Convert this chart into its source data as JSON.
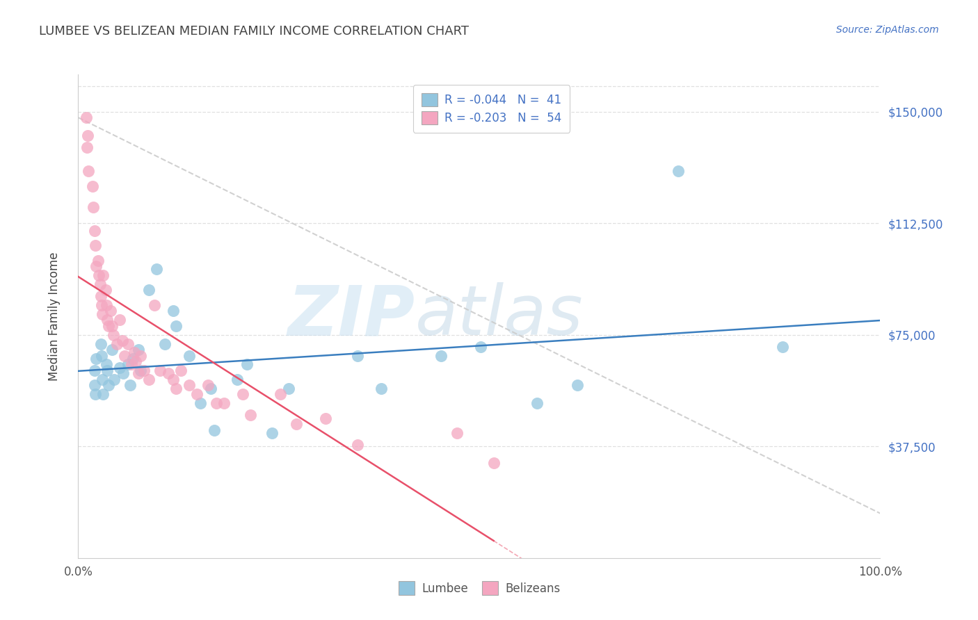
{
  "title": "LUMBEE VS BELIZEAN MEDIAN FAMILY INCOME CORRELATION CHART",
  "source_text": "Source: ZipAtlas.com",
  "ylabel": "Median Family Income",
  "xlim_min": 0.0,
  "xlim_max": 1.0,
  "ylim_min": 0,
  "ylim_max": 162500,
  "xtick_positions": [
    0.0,
    1.0
  ],
  "xtick_labels": [
    "0.0%",
    "100.0%"
  ],
  "ytick_positions": [
    37500,
    75000,
    112500,
    150000
  ],
  "ytick_labels": [
    "$37,500",
    "$75,000",
    "$112,500",
    "$150,000"
  ],
  "legend_r1": "R = -0.044",
  "legend_n1": "N =  41",
  "legend_r2": "R = -0.203",
  "legend_n2": "N =  54",
  "lumbee_color": "#92c5de",
  "belizean_color": "#f4a6c0",
  "lumbee_line_color": "#3a7ebf",
  "belizean_line_color": "#e8506a",
  "dashed_line_color": "#cccccc",
  "bg_color": "#ffffff",
  "grid_color": "#e0e0e0",
  "title_color": "#444444",
  "source_color": "#4472c4",
  "yaxis_label_color": "#444444",
  "ytick_color": "#4472c4",
  "lumbee_x": [
    0.02,
    0.02,
    0.021,
    0.022,
    0.028,
    0.029,
    0.03,
    0.031,
    0.035,
    0.036,
    0.038,
    0.042,
    0.045,
    0.052,
    0.056,
    0.062,
    0.065,
    0.068,
    0.075,
    0.078,
    0.088,
    0.098,
    0.108,
    0.118,
    0.122,
    0.138,
    0.152,
    0.165,
    0.17,
    0.198,
    0.21,
    0.242,
    0.262,
    0.348,
    0.378,
    0.452,
    0.502,
    0.572,
    0.622,
    0.748,
    0.878
  ],
  "lumbee_y": [
    63000,
    58000,
    55000,
    67000,
    72000,
    68000,
    60000,
    55000,
    65000,
    63000,
    58000,
    70000,
    60000,
    64000,
    62000,
    65000,
    58000,
    67000,
    70000,
    63000,
    90000,
    97000,
    72000,
    83000,
    78000,
    68000,
    52000,
    57000,
    43000,
    60000,
    65000,
    42000,
    57000,
    68000,
    57000,
    68000,
    71000,
    52000,
    58000,
    130000,
    71000
  ],
  "belizean_x": [
    0.01,
    0.011,
    0.012,
    0.013,
    0.018,
    0.019,
    0.02,
    0.021,
    0.022,
    0.025,
    0.026,
    0.027,
    0.028,
    0.029,
    0.03,
    0.031,
    0.034,
    0.035,
    0.036,
    0.038,
    0.04,
    0.042,
    0.044,
    0.048,
    0.052,
    0.055,
    0.058,
    0.062,
    0.066,
    0.07,
    0.072,
    0.075,
    0.078,
    0.082,
    0.088,
    0.095,
    0.102,
    0.112,
    0.118,
    0.122,
    0.128,
    0.138,
    0.148,
    0.162,
    0.172,
    0.182,
    0.205,
    0.215,
    0.252,
    0.272,
    0.308,
    0.348,
    0.472,
    0.518
  ],
  "belizean_y": [
    148000,
    138000,
    142000,
    130000,
    125000,
    118000,
    110000,
    105000,
    98000,
    100000,
    95000,
    92000,
    88000,
    85000,
    82000,
    95000,
    90000,
    85000,
    80000,
    78000,
    83000,
    78000,
    75000,
    72000,
    80000,
    73000,
    68000,
    72000,
    65000,
    69000,
    66000,
    62000,
    68000,
    63000,
    60000,
    85000,
    63000,
    62000,
    60000,
    57000,
    63000,
    58000,
    55000,
    58000,
    52000,
    52000,
    55000,
    48000,
    55000,
    45000,
    47000,
    38000,
    42000,
    32000
  ]
}
